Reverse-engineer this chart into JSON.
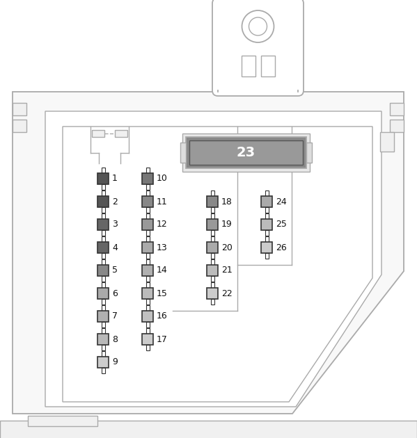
{
  "bg_color": "#ffffff",
  "line_color": "#c0c0c0",
  "line_color2": "#aaaaaa",
  "fuse_border_dark": "#333333",
  "fuse_border_light": "#555555",
  "fuse_fill_1": "#666666",
  "fuse_fill_2": "#888888",
  "fuse_fill_3": "#aaaaaa",
  "fuse_fill_4": "#b8b8b8",
  "fuse_fill_5": "#cccccc",
  "relay23_fill": "#888888",
  "relay23_bg": "#dddddd",
  "relay23_text": "#000000",
  "text_color": "#111111",
  "col1_fuses": [
    1,
    2,
    3,
    4,
    5,
    6,
    7,
    8,
    9
  ],
  "col2_fuses": [
    10,
    11,
    12,
    13,
    14,
    15,
    16,
    17
  ],
  "col3_fuses": [
    18,
    19,
    20,
    21,
    22
  ],
  "col4_fuses": [
    24,
    25,
    26
  ],
  "relay23_label": "23",
  "col1_colors": [
    "#555555",
    "#555555",
    "#666666",
    "#666666",
    "#888888",
    "#aaaaaa",
    "#b0b0b0",
    "#b8b8b8",
    "#cccccc"
  ],
  "col2_colors": [
    "#777777",
    "#888888",
    "#999999",
    "#aaaaaa",
    "#b0b0b0",
    "#bbbbbb",
    "#c0c0c0",
    "#cccccc"
  ],
  "col3_colors": [
    "#888888",
    "#999999",
    "#aaaaaa",
    "#bbbbbb",
    "#cccccc"
  ],
  "col4_colors": [
    "#aaaaaa",
    "#bbbbbb",
    "#cccccc"
  ]
}
